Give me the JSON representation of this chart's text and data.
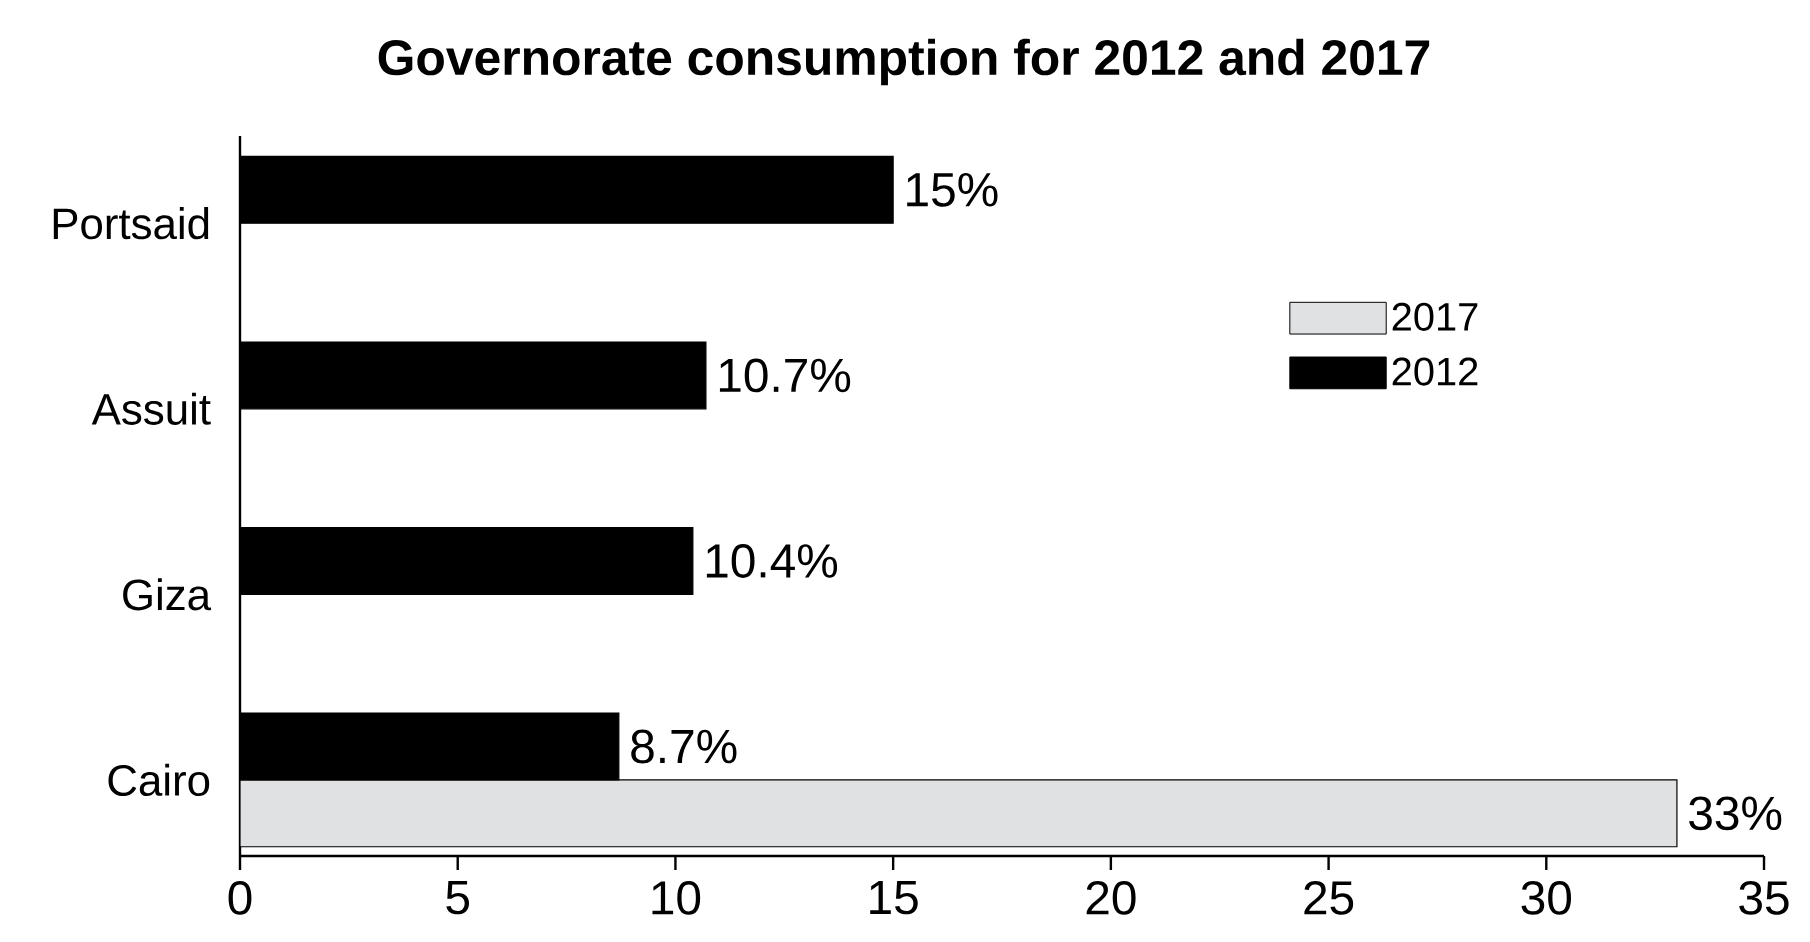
{
  "chart_data": {
    "type": "bar",
    "orientation": "horizontal",
    "title": "Governorate consumption for 2012 and 2017",
    "categories": [
      "Portsaid",
      "Assuit",
      "Giza",
      "Cairo"
    ],
    "series": [
      {
        "name": "2017",
        "color": "#e0e1e3",
        "values": [
          null,
          null,
          null,
          33
        ],
        "value_labels": [
          null,
          null,
          null,
          "33%"
        ]
      },
      {
        "name": "2012",
        "color": "#000000",
        "values": [
          15,
          10.7,
          10.4,
          8.7
        ],
        "value_labels": [
          "15%",
          "10.7%",
          "10.4%",
          "8.7%"
        ]
      }
    ],
    "xlim": [
      0,
      35
    ],
    "xticks": [
      0,
      5,
      10,
      15,
      20,
      25,
      30,
      35
    ],
    "grid": false,
    "legend": "right"
  }
}
